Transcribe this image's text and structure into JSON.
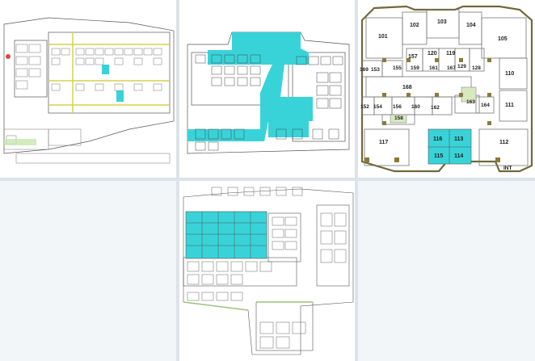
{
  "colors": {
    "background": "#dde3ea",
    "tile": "#f3f6f9",
    "highlight": "#38d3d8",
    "wall": "#555555",
    "corridor": "#d8e6a6",
    "core": "#8a7a3a"
  },
  "tiles": [
    {
      "id": "plan-1",
      "kind": "floor-plan-thumbnail"
    },
    {
      "id": "plan-2",
      "kind": "floor-plan-thumbnail"
    },
    {
      "id": "plan-3",
      "kind": "floor-plan-detail"
    },
    {
      "id": "plan-4",
      "kind": "empty"
    },
    {
      "id": "plan-5",
      "kind": "floor-plan-thumbnail"
    }
  ],
  "plan3": {
    "rooms": {
      "r101": "101",
      "r102": "102",
      "r103": "103",
      "r104": "104",
      "r105": "105",
      "r110": "110",
      "r111": "111",
      "r112": "112",
      "r113": "113",
      "r114": "114",
      "r115": "115",
      "r116": "116",
      "r117": "117",
      "r119": "119",
      "r120": "120",
      "r128": "128",
      "r129": "129",
      "r152": "152",
      "r153": "153",
      "r154": "154",
      "r155": "155",
      "r156": "156",
      "r157": "157",
      "r158": "158",
      "r159": "159",
      "r160": "160",
      "r161": "161",
      "r162": "162",
      "r163": "163",
      "r164": "164",
      "r167": "167",
      "r168": "168",
      "r169": "169"
    },
    "corner_label": "INT"
  }
}
